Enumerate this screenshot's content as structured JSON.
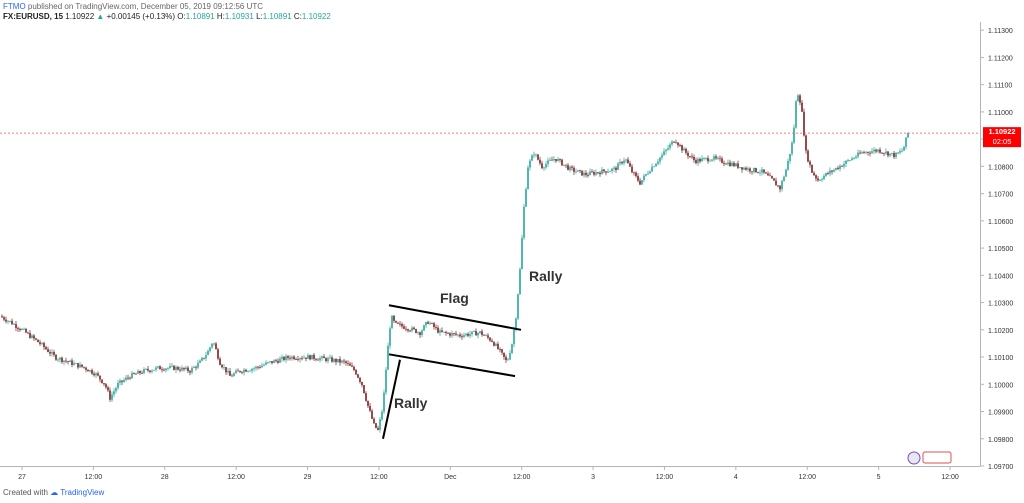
{
  "header": {
    "publisher": "FTMO",
    "published_text": "published on TradingView.com, December 05, 2019 09:12:56 UTC"
  },
  "ohlc": {
    "symbol": "FX:EURUSD, 15",
    "last": "1.10922",
    "change": "+0.00145 (+0.13%)",
    "o_label": "O:",
    "o": "1.10891",
    "h_label": "H:",
    "h": "1.10931",
    "l_label": "L:",
    "l": "1.10891",
    "c_label": "C:",
    "c": "1.10922"
  },
  "footer": {
    "created_with": "Created with",
    "brand": "TradingView"
  },
  "price_tag": {
    "value": "1.10922",
    "timer": "02:05"
  },
  "colors": {
    "up": "#26a69a",
    "down": "#7b1f1f",
    "price_line": "#ef5350",
    "tag": "#ff0000",
    "annotation": "#000000"
  },
  "chart_data": {
    "type": "candlestick",
    "symbol": "FX:EURUSD",
    "interval": "15",
    "ylim": [
      1.097,
      1.1133
    ],
    "y_ticks": [
      "1.11300",
      "1.11200",
      "1.11100",
      "1.11000",
      "1.10900",
      "1.10800",
      "1.10700",
      "1.10600",
      "1.10500",
      "1.10400",
      "1.10300",
      "1.10200",
      "1.10100",
      "1.10000",
      "1.09900",
      "1.09800",
      "1.09700"
    ],
    "x_ticks": [
      "27",
      "12:00",
      "28",
      "12:00",
      "29",
      "12:00",
      "Dec",
      "12:00",
      "3",
      "12:00",
      "4",
      "12:00",
      "5",
      "12:00"
    ],
    "current_price": 1.10922,
    "path": [
      [
        0,
        1.1025
      ],
      [
        10,
        1.1023
      ],
      [
        22,
        1.102
      ],
      [
        40,
        1.1015
      ],
      [
        55,
        1.101
      ],
      [
        70,
        1.1008
      ],
      [
        85,
        1.1006
      ],
      [
        95,
        1.1004
      ],
      [
        105,
        1.1
      ],
      [
        110,
        1.0995
      ],
      [
        118,
        1.1
      ],
      [
        130,
        1.1003
      ],
      [
        145,
        1.1005
      ],
      [
        160,
        1.1006
      ],
      [
        175,
        1.1006
      ],
      [
        190,
        1.1005
      ],
      [
        200,
        1.1008
      ],
      [
        208,
        1.1012
      ],
      [
        213,
        1.1016
      ],
      [
        220,
        1.1008
      ],
      [
        230,
        1.1003
      ],
      [
        240,
        1.1005
      ],
      [
        255,
        1.1006
      ],
      [
        270,
        1.1008
      ],
      [
        290,
        1.101
      ],
      [
        310,
        1.101
      ],
      [
        330,
        1.1009
      ],
      [
        345,
        1.1008
      ],
      [
        355,
        1.1005
      ],
      [
        362,
        1.1
      ],
      [
        368,
        1.0992
      ],
      [
        374,
        1.0985
      ],
      [
        378,
        1.0983
      ],
      [
        383,
        1.0992
      ],
      [
        387,
        1.101
      ],
      [
        391,
        1.1025
      ],
      [
        395,
        1.1022
      ],
      [
        405,
        1.1021
      ],
      [
        420,
        1.1019
      ],
      [
        428,
        1.1023
      ],
      [
        440,
        1.1019
      ],
      [
        460,
        1.1018
      ],
      [
        480,
        1.1019
      ],
      [
        492,
        1.1016
      ],
      [
        500,
        1.1012
      ],
      [
        507,
        1.1008
      ],
      [
        512,
        1.1015
      ],
      [
        516,
        1.1025
      ],
      [
        520,
        1.1042
      ],
      [
        524,
        1.1065
      ],
      [
        528,
        1.108
      ],
      [
        534,
        1.1085
      ],
      [
        542,
        1.108
      ],
      [
        555,
        1.1083
      ],
      [
        570,
        1.1079
      ],
      [
        585,
        1.1077
      ],
      [
        600,
        1.1078
      ],
      [
        615,
        1.1079
      ],
      [
        625,
        1.1083
      ],
      [
        632,
        1.1078
      ],
      [
        640,
        1.1074
      ],
      [
        650,
        1.1079
      ],
      [
        662,
        1.1084
      ],
      [
        675,
        1.109
      ],
      [
        683,
        1.1086
      ],
      [
        695,
        1.1082
      ],
      [
        712,
        1.1083
      ],
      [
        730,
        1.1081
      ],
      [
        748,
        1.1079
      ],
      [
        762,
        1.1078
      ],
      [
        772,
        1.1075
      ],
      [
        780,
        1.1072
      ],
      [
        787,
        1.108
      ],
      [
        793,
        1.109
      ],
      [
        797,
        1.1108
      ],
      [
        801,
        1.1103
      ],
      [
        806,
        1.1085
      ],
      [
        812,
        1.1078
      ],
      [
        818,
        1.1075
      ],
      [
        826,
        1.1077
      ],
      [
        835,
        1.1079
      ],
      [
        848,
        1.1082
      ],
      [
        862,
        1.1085
      ],
      [
        878,
        1.1086
      ],
      [
        895,
        1.1084
      ],
      [
        903,
        1.1086
      ],
      [
        908,
        1.10922
      ]
    ],
    "annotations": [
      {
        "text": "Flag",
        "type": "label"
      },
      {
        "text": "Rally",
        "type": "label"
      },
      {
        "text": "Rally",
        "type": "label"
      },
      {
        "type": "flag-channel",
        "upper": [
          [
            389,
            1.1029
          ],
          [
            521,
            1.102
          ]
        ],
        "lower": [
          [
            389,
            1.1011
          ],
          [
            515,
            1.1003
          ]
        ]
      },
      {
        "type": "rally-line",
        "points": [
          [
            383,
            1.098
          ],
          [
            400,
            1.1009
          ]
        ]
      }
    ]
  }
}
